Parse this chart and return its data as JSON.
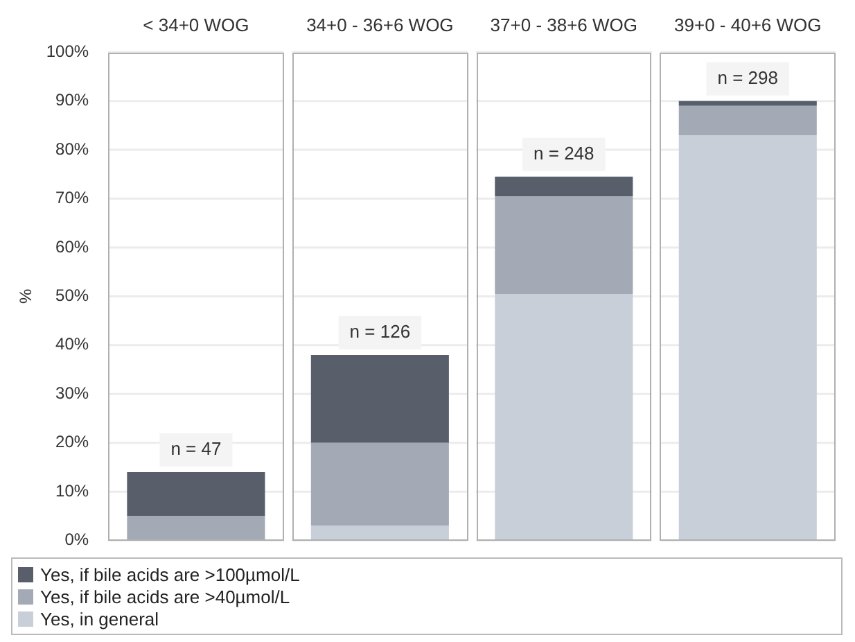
{
  "chart_data": {
    "type": "bar",
    "stacked": true,
    "ylabel": "%",
    "categories": [
      "< 34+0 WOG",
      "34+0 - 36+6 WOG",
      "37+0 - 38+6 WOG",
      "39+0 - 40+6 WOG"
    ],
    "series": [
      {
        "name": "Yes, in general",
        "color": "#c8cfd8",
        "values": [
          0,
          3,
          50.5,
          83
        ]
      },
      {
        "name": "Yes, if bile acids are >40µmol/L",
        "color": "#a3aab5",
        "values": [
          5,
          17,
          20,
          6
        ]
      },
      {
        "name": "Yes, if bile acids are >100µmol/L",
        "color": "#585f6b",
        "values": [
          9,
          18,
          4,
          1
        ]
      }
    ],
    "ylim": [
      0,
      100
    ],
    "yticks": [
      {
        "value": 0,
        "label": "0%"
      },
      {
        "value": 10,
        "label": "10%"
      },
      {
        "value": 20,
        "label": "20%"
      },
      {
        "value": 30,
        "label": "30%"
      },
      {
        "value": 40,
        "label": "40%"
      },
      {
        "value": 50,
        "label": "50%"
      },
      {
        "value": 60,
        "label": "60%"
      },
      {
        "value": 70,
        "label": "70%"
      },
      {
        "value": 80,
        "label": "80%"
      },
      {
        "value": 90,
        "label": "90%"
      },
      {
        "value": 100,
        "label": "100%"
      }
    ],
    "grid": "y",
    "legend": "bottom",
    "annotations": [
      {
        "text": "n = 47",
        "x": "< 34+0 WOG",
        "y": 14
      },
      {
        "text": "n = 126",
        "x": "34+0 - 36+6 WOG",
        "y": 38
      },
      {
        "text": "n = 248",
        "x": "37+0 - 38+6 WOG",
        "y": 74.5
      },
      {
        "text": "n = 298",
        "x": "39+0 - 40+6 WOG",
        "y": 90
      }
    ]
  }
}
